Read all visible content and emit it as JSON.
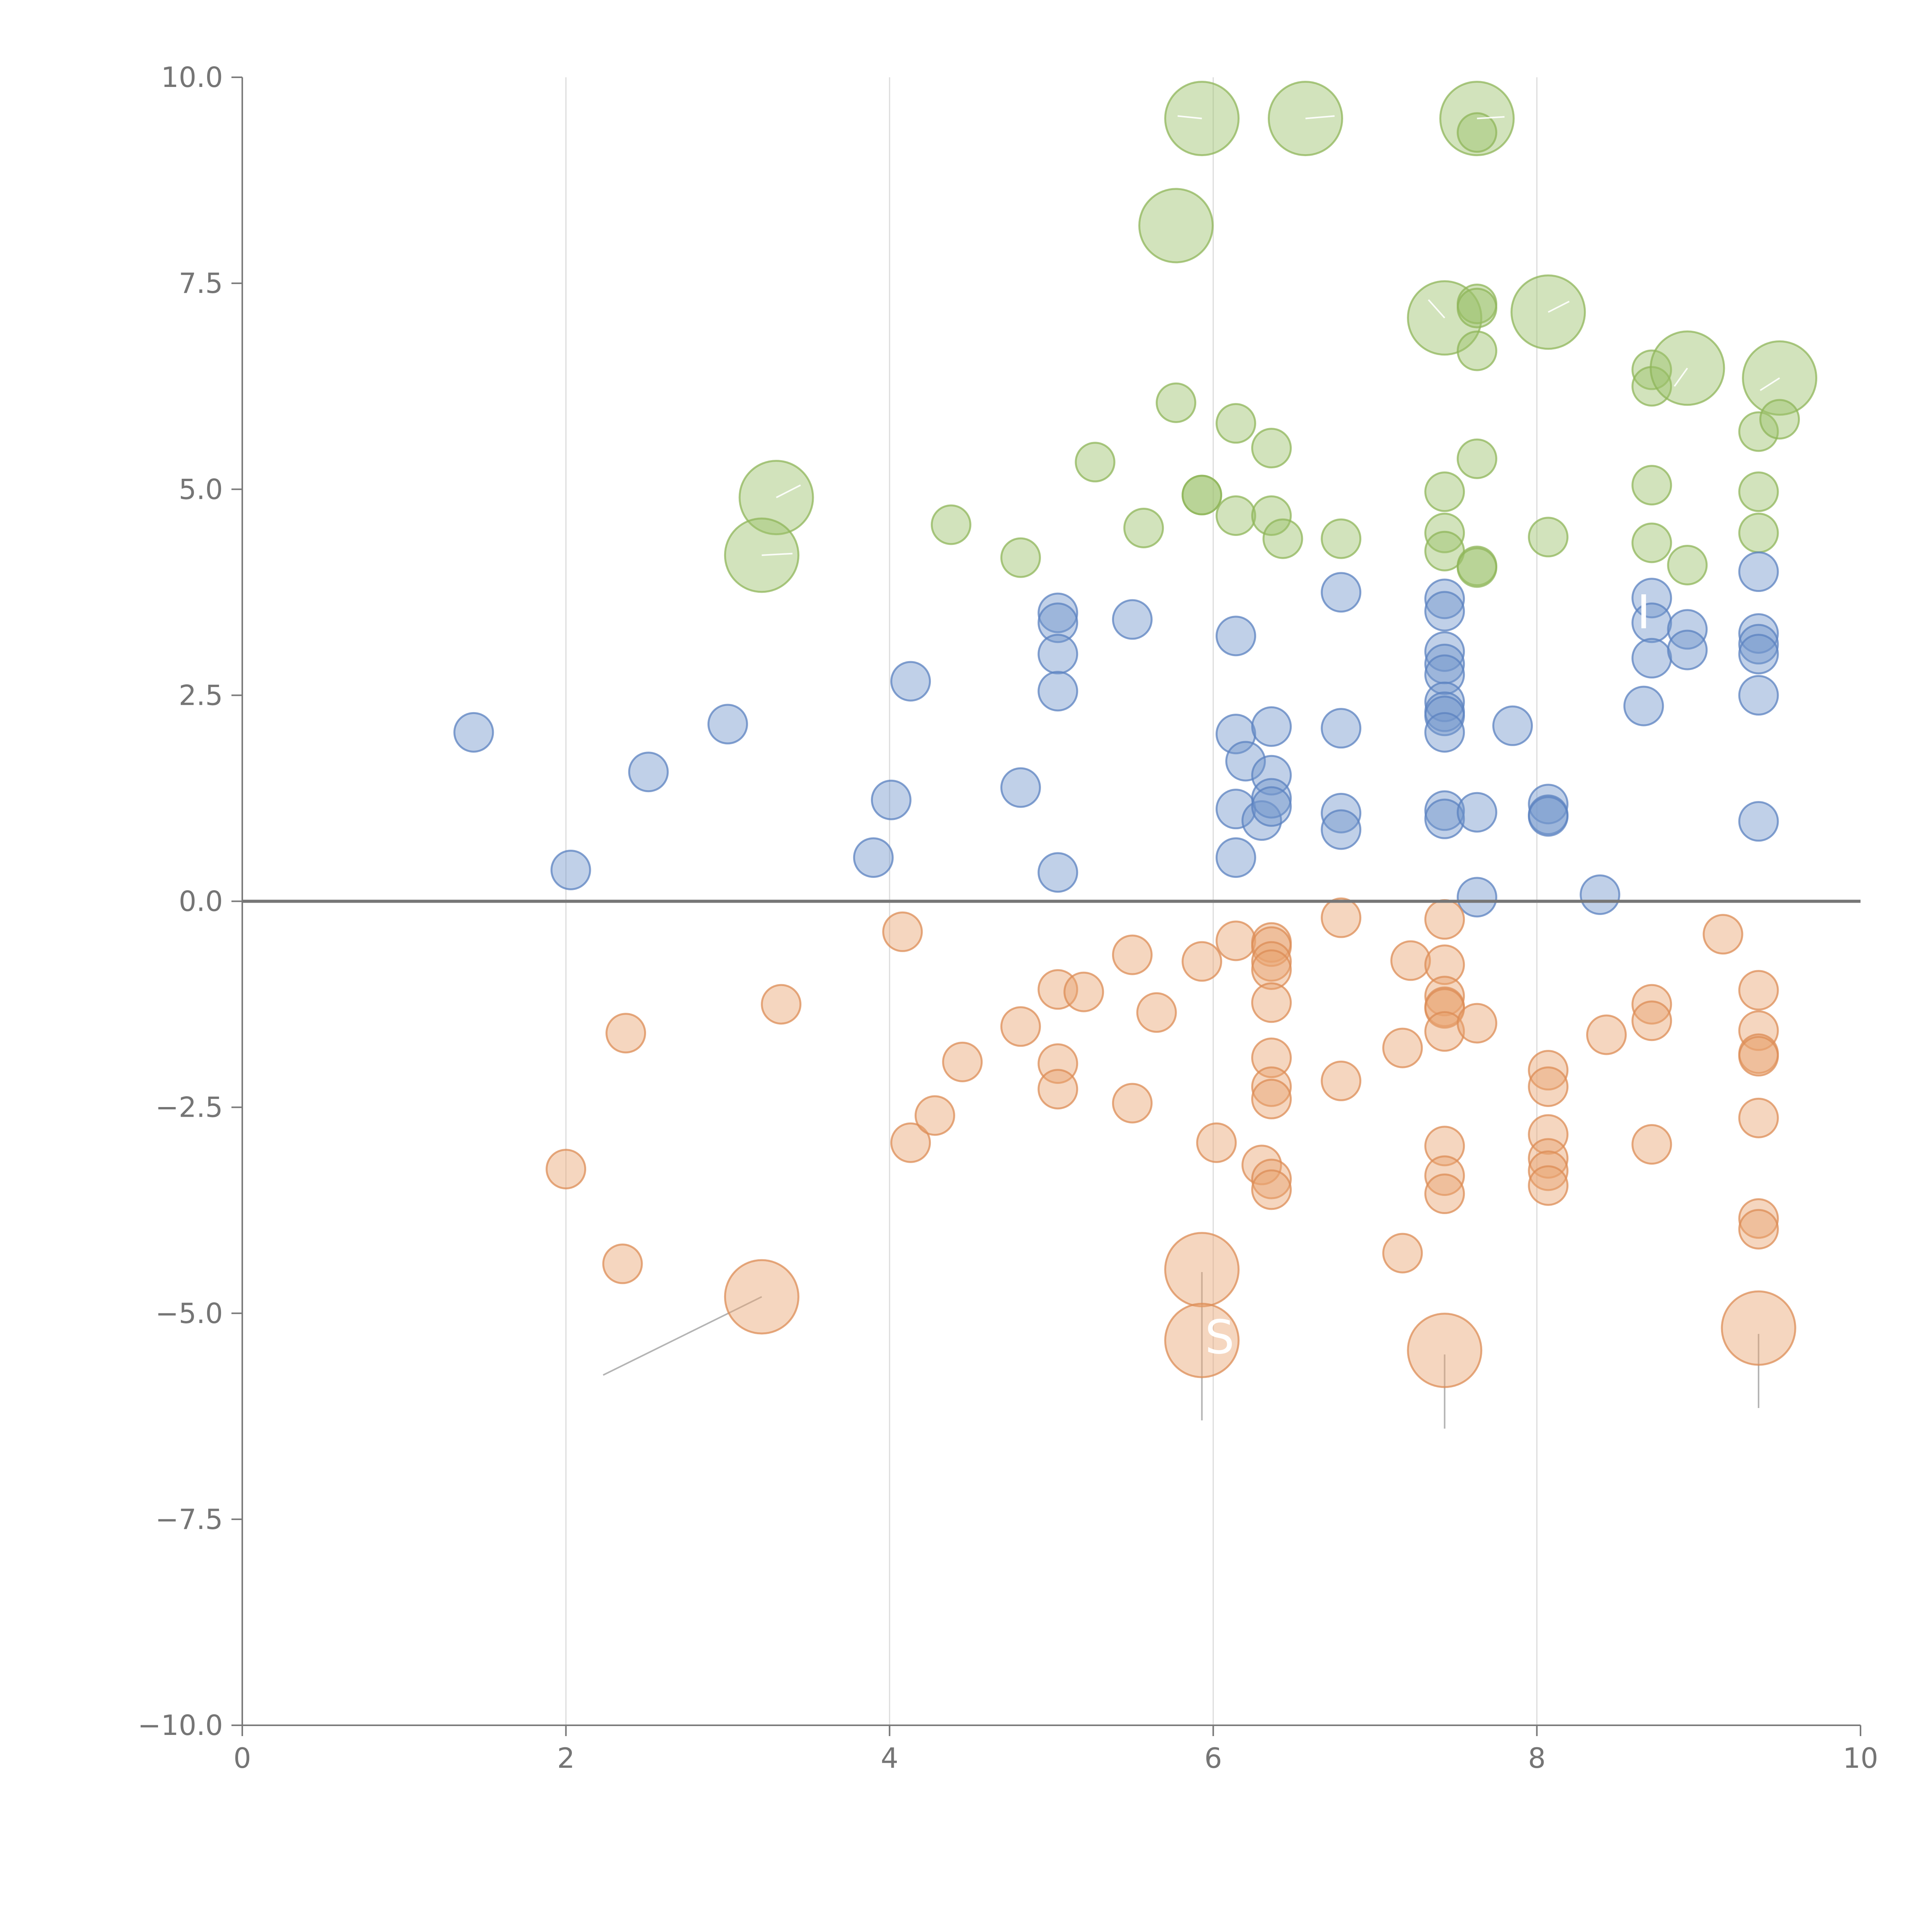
{
  "chart_data": {
    "type": "scatter",
    "title": "",
    "xlabel": "",
    "ylabel": "",
    "xlim": [
      0,
      10
    ],
    "ylim": [
      -10,
      10
    ],
    "x_ticks": [
      0,
      2,
      4,
      6,
      8,
      10
    ],
    "y_ticks": [
      -10,
      -7.5,
      -5,
      -2.5,
      0,
      2.5,
      5,
      7.5,
      10
    ],
    "x_tick_labels": [
      "0",
      "2",
      "4",
      "6",
      "8",
      "10"
    ],
    "y_tick_labels": [
      "−10.0",
      "−7.5",
      "−5.0",
      "−2.5",
      "0.0",
      "2.5",
      "5.0",
      "7.5",
      "10.0"
    ],
    "x_grid": true,
    "y_grid": false,
    "zero_line": true,
    "overlay_labels": [
      {
        "text": "S",
        "x": 6.04,
        "y": -5.3
      },
      {
        "text": "I",
        "x": 8.66,
        "y": 3.5
      }
    ],
    "series": [
      {
        "name": "green",
        "color": "#9cc06a",
        "stroke": "#8fb55a",
        "points": [
          {
            "x": 5.93,
            "y": 9.5,
            "s": 3
          },
          {
            "x": 6.57,
            "y": 9.5,
            "s": 3
          },
          {
            "x": 7.63,
            "y": 9.5,
            "s": 3
          },
          {
            "x": 7.63,
            "y": 9.33,
            "s": 1
          },
          {
            "x": 5.77,
            "y": 8.2,
            "s": 3
          },
          {
            "x": 7.43,
            "y": 7.08,
            "s": 3
          },
          {
            "x": 8.07,
            "y": 7.15,
            "s": 3
          },
          {
            "x": 7.63,
            "y": 7.25,
            "s": 1
          },
          {
            "x": 7.63,
            "y": 7.2,
            "s": 1
          },
          {
            "x": 7.63,
            "y": 6.68,
            "s": 1
          },
          {
            "x": 8.71,
            "y": 6.45,
            "s": 1
          },
          {
            "x": 8.71,
            "y": 6.25,
            "s": 1
          },
          {
            "x": 8.93,
            "y": 6.47,
            "s": 3
          },
          {
            "x": 9.5,
            "y": 6.35,
            "s": 3
          },
          {
            "x": 9.37,
            "y": 5.7,
            "s": 1
          },
          {
            "x": 9.5,
            "y": 5.85,
            "s": 1
          },
          {
            "x": 5.77,
            "y": 6.05,
            "s": 1
          },
          {
            "x": 6.14,
            "y": 5.8,
            "s": 1
          },
          {
            "x": 6.36,
            "y": 5.5,
            "s": 1
          },
          {
            "x": 5.27,
            "y": 5.33,
            "s": 1
          },
          {
            "x": 7.63,
            "y": 5.37,
            "s": 1
          },
          {
            "x": 3.3,
            "y": 4.9,
            "s": 3
          },
          {
            "x": 3.21,
            "y": 4.2,
            "s": 3
          },
          {
            "x": 4.38,
            "y": 4.57,
            "s": 1
          },
          {
            "x": 5.57,
            "y": 4.53,
            "s": 1
          },
          {
            "x": 5.93,
            "y": 4.93,
            "s": 1
          },
          {
            "x": 5.93,
            "y": 4.93,
            "s": 1
          },
          {
            "x": 6.14,
            "y": 4.68,
            "s": 1
          },
          {
            "x": 6.36,
            "y": 4.68,
            "s": 1
          },
          {
            "x": 6.43,
            "y": 4.4,
            "s": 1
          },
          {
            "x": 4.81,
            "y": 4.17,
            "s": 1
          },
          {
            "x": 6.79,
            "y": 4.4,
            "s": 1
          },
          {
            "x": 7.43,
            "y": 4.97,
            "s": 1
          },
          {
            "x": 7.43,
            "y": 4.47,
            "s": 1
          },
          {
            "x": 7.43,
            "y": 4.25,
            "s": 1
          },
          {
            "x": 7.63,
            "y": 4.07,
            "s": 1
          },
          {
            "x": 7.63,
            "y": 4.05,
            "s": 1
          },
          {
            "x": 8.07,
            "y": 4.42,
            "s": 1
          },
          {
            "x": 8.71,
            "y": 5.05,
            "s": 1
          },
          {
            "x": 8.71,
            "y": 4.35,
            "s": 1
          },
          {
            "x": 8.93,
            "y": 4.08,
            "s": 1
          },
          {
            "x": 9.37,
            "y": 4.97,
            "s": 1
          },
          {
            "x": 9.37,
            "y": 4.47,
            "s": 1
          }
        ]
      },
      {
        "name": "blue",
        "color": "#7396cb",
        "stroke": "#5b82c0",
        "points": [
          {
            "x": 1.43,
            "y": 2.05,
            "s": 1
          },
          {
            "x": 2.03,
            "y": 0.38,
            "s": 1
          },
          {
            "x": 2.51,
            "y": 1.57,
            "s": 1
          },
          {
            "x": 3.0,
            "y": 2.15,
            "s": 1
          },
          {
            "x": 3.9,
            "y": 0.53,
            "s": 1
          },
          {
            "x": 4.01,
            "y": 1.23,
            "s": 1
          },
          {
            "x": 4.13,
            "y": 2.67,
            "s": 1
          },
          {
            "x": 4.81,
            "y": 1.38,
            "s": 1
          },
          {
            "x": 5.04,
            "y": 3.5,
            "s": 1
          },
          {
            "x": 5.04,
            "y": 3.38,
            "s": 1
          },
          {
            "x": 5.04,
            "y": 3.0,
            "s": 1
          },
          {
            "x": 5.04,
            "y": 2.55,
            "s": 1
          },
          {
            "x": 5.04,
            "y": 0.35,
            "s": 1
          },
          {
            "x": 5.5,
            "y": 3.42,
            "s": 1
          },
          {
            "x": 6.14,
            "y": 3.22,
            "s": 1
          },
          {
            "x": 6.14,
            "y": 2.03,
            "s": 1
          },
          {
            "x": 6.2,
            "y": 1.7,
            "s": 1
          },
          {
            "x": 6.14,
            "y": 1.12,
            "s": 1
          },
          {
            "x": 6.14,
            "y": 0.53,
            "s": 1
          },
          {
            "x": 6.3,
            "y": 0.98,
            "s": 1
          },
          {
            "x": 6.36,
            "y": 2.12,
            "s": 1
          },
          {
            "x": 6.36,
            "y": 1.53,
            "s": 1
          },
          {
            "x": 6.36,
            "y": 1.25,
            "s": 1
          },
          {
            "x": 6.36,
            "y": 1.15,
            "s": 1
          },
          {
            "x": 6.79,
            "y": 3.75,
            "s": 1
          },
          {
            "x": 6.79,
            "y": 2.1,
            "s": 1
          },
          {
            "x": 6.79,
            "y": 1.07,
            "s": 1
          },
          {
            "x": 6.79,
            "y": 0.87,
            "s": 1
          },
          {
            "x": 7.43,
            "y": 3.67,
            "s": 1
          },
          {
            "x": 7.43,
            "y": 3.52,
            "s": 1
          },
          {
            "x": 7.43,
            "y": 3.03,
            "s": 1
          },
          {
            "x": 7.43,
            "y": 2.88,
            "s": 1
          },
          {
            "x": 7.43,
            "y": 2.75,
            "s": 1
          },
          {
            "x": 7.43,
            "y": 2.42,
            "s": 1
          },
          {
            "x": 7.43,
            "y": 2.3,
            "s": 1
          },
          {
            "x": 7.43,
            "y": 2.25,
            "s": 1
          },
          {
            "x": 7.43,
            "y": 2.05,
            "s": 1
          },
          {
            "x": 7.43,
            "y": 1.1,
            "s": 1
          },
          {
            "x": 7.43,
            "y": 1.0,
            "s": 1
          },
          {
            "x": 7.63,
            "y": 1.08,
            "s": 1
          },
          {
            "x": 7.63,
            "y": 0.05,
            "s": 1
          },
          {
            "x": 7.85,
            "y": 2.13,
            "s": 1
          },
          {
            "x": 8.07,
            "y": 1.18,
            "s": 1
          },
          {
            "x": 8.07,
            "y": 1.05,
            "s": 1
          },
          {
            "x": 8.07,
            "y": 1.03,
            "s": 1
          },
          {
            "x": 8.39,
            "y": 0.08,
            "s": 1
          },
          {
            "x": 8.66,
            "y": 2.37,
            "s": 1
          },
          {
            "x": 8.71,
            "y": 3.68,
            "s": 1
          },
          {
            "x": 8.71,
            "y": 3.38,
            "s": 1
          },
          {
            "x": 8.71,
            "y": 2.95,
            "s": 1
          },
          {
            "x": 8.93,
            "y": 3.3,
            "s": 1
          },
          {
            "x": 8.93,
            "y": 3.05,
            "s": 1
          },
          {
            "x": 9.37,
            "y": 4.0,
            "s": 1
          },
          {
            "x": 9.37,
            "y": 3.25,
            "s": 1
          },
          {
            "x": 9.37,
            "y": 3.12,
            "s": 1
          },
          {
            "x": 9.37,
            "y": 3.0,
            "s": 1
          },
          {
            "x": 9.37,
            "y": 2.5,
            "s": 1
          },
          {
            "x": 9.37,
            "y": 0.97,
            "s": 1
          }
        ]
      },
      {
        "name": "orange",
        "color": "#e8a372",
        "stroke": "#dc8c55",
        "points": [
          {
            "x": 4.08,
            "y": -0.37,
            "s": 1
          },
          {
            "x": 3.33,
            "y": -1.25,
            "s": 1
          },
          {
            "x": 2.37,
            "y": -1.6,
            "s": 1
          },
          {
            "x": 2.0,
            "y": -3.25,
            "s": 1
          },
          {
            "x": 2.35,
            "y": -4.4,
            "s": 1
          },
          {
            "x": 3.21,
            "y": -4.8,
            "s": 3
          },
          {
            "x": 4.13,
            "y": -2.93,
            "s": 1
          },
          {
            "x": 4.28,
            "y": -2.6,
            "s": 1
          },
          {
            "x": 4.45,
            "y": -1.95,
            "s": 1
          },
          {
            "x": 4.81,
            "y": -1.52,
            "s": 1
          },
          {
            "x": 5.04,
            "y": -1.07,
            "s": 1
          },
          {
            "x": 5.04,
            "y": -1.97,
            "s": 1
          },
          {
            "x": 5.04,
            "y": -2.28,
            "s": 1
          },
          {
            "x": 5.2,
            "y": -1.1,
            "s": 1
          },
          {
            "x": 5.5,
            "y": -0.65,
            "s": 1
          },
          {
            "x": 5.5,
            "y": -2.45,
            "s": 1
          },
          {
            "x": 5.65,
            "y": -1.35,
            "s": 1
          },
          {
            "x": 5.93,
            "y": -0.73,
            "s": 1
          },
          {
            "x": 5.93,
            "y": -4.47,
            "s": 3
          },
          {
            "x": 5.93,
            "y": -5.33,
            "s": 3
          },
          {
            "x": 6.02,
            "y": -2.93,
            "s": 1
          },
          {
            "x": 6.14,
            "y": -0.48,
            "s": 1
          },
          {
            "x": 6.3,
            "y": -3.2,
            "s": 1
          },
          {
            "x": 6.36,
            "y": -0.5,
            "s": 1
          },
          {
            "x": 6.36,
            "y": -0.55,
            "s": 1
          },
          {
            "x": 6.36,
            "y": -0.73,
            "s": 1
          },
          {
            "x": 6.36,
            "y": -0.83,
            "s": 1
          },
          {
            "x": 6.36,
            "y": -1.23,
            "s": 1
          },
          {
            "x": 6.36,
            "y": -1.9,
            "s": 1
          },
          {
            "x": 6.36,
            "y": -2.25,
            "s": 1
          },
          {
            "x": 6.36,
            "y": -2.4,
            "s": 1
          },
          {
            "x": 6.36,
            "y": -3.37,
            "s": 1
          },
          {
            "x": 6.36,
            "y": -3.5,
            "s": 1
          },
          {
            "x": 6.79,
            "y": -0.2,
            "s": 1
          },
          {
            "x": 6.79,
            "y": -2.18,
            "s": 1
          },
          {
            "x": 7.17,
            "y": -1.78,
            "s": 1
          },
          {
            "x": 7.17,
            "y": -4.27,
            "s": 1
          },
          {
            "x": 7.22,
            "y": -0.72,
            "s": 1
          },
          {
            "x": 7.43,
            "y": -0.22,
            "s": 1
          },
          {
            "x": 7.43,
            "y": -0.77,
            "s": 1
          },
          {
            "x": 7.43,
            "y": -1.15,
            "s": 1
          },
          {
            "x": 7.43,
            "y": -1.28,
            "s": 1
          },
          {
            "x": 7.43,
            "y": -1.3,
            "s": 1
          },
          {
            "x": 7.43,
            "y": -1.58,
            "s": 1
          },
          {
            "x": 7.43,
            "y": -2.97,
            "s": 1
          },
          {
            "x": 7.43,
            "y": -3.33,
            "s": 1
          },
          {
            "x": 7.43,
            "y": -3.55,
            "s": 1
          },
          {
            "x": 7.43,
            "y": -5.45,
            "s": 3
          },
          {
            "x": 7.63,
            "y": -1.48,
            "s": 1
          },
          {
            "x": 8.07,
            "y": -2.05,
            "s": 1
          },
          {
            "x": 8.07,
            "y": -2.25,
            "s": 1
          },
          {
            "x": 8.07,
            "y": -2.83,
            "s": 1
          },
          {
            "x": 8.07,
            "y": -3.12,
            "s": 1
          },
          {
            "x": 8.07,
            "y": -3.27,
            "s": 1
          },
          {
            "x": 8.07,
            "y": -3.45,
            "s": 1
          },
          {
            "x": 8.43,
            "y": -1.62,
            "s": 1
          },
          {
            "x": 8.71,
            "y": -1.25,
            "s": 1
          },
          {
            "x": 8.71,
            "y": -1.45,
            "s": 1
          },
          {
            "x": 8.71,
            "y": -2.95,
            "s": 1
          },
          {
            "x": 9.15,
            "y": -0.4,
            "s": 1
          },
          {
            "x": 9.37,
            "y": -1.08,
            "s": 1
          },
          {
            "x": 9.37,
            "y": -1.57,
            "s": 1
          },
          {
            "x": 9.37,
            "y": -1.85,
            "s": 1
          },
          {
            "x": 9.37,
            "y": -1.88,
            "s": 1
          },
          {
            "x": 9.37,
            "y": -2.63,
            "s": 1
          },
          {
            "x": 9.37,
            "y": -3.85,
            "s": 1
          },
          {
            "x": 9.37,
            "y": -3.98,
            "s": 1
          },
          {
            "x": 9.37,
            "y": -5.18,
            "s": 3
          }
        ]
      }
    ],
    "leader_lines": [
      {
        "tone": "grey",
        "x1": 3.21,
        "y1": -4.8,
        "x2": 2.23,
        "y2": -5.75
      },
      {
        "tone": "grey",
        "x1": 5.93,
        "y1": -4.5,
        "x2": 5.93,
        "y2": -6.3
      },
      {
        "tone": "grey",
        "x1": 7.43,
        "y1": -5.5,
        "x2": 7.43,
        "y2": -6.4
      },
      {
        "tone": "grey",
        "x1": 9.37,
        "y1": -5.25,
        "x2": 9.37,
        "y2": -6.15
      },
      {
        "tone": "white",
        "x1": 3.3,
        "y1": 4.9,
        "x2": 3.45,
        "y2": 5.05
      },
      {
        "tone": "white",
        "x1": 3.21,
        "y1": 4.2,
        "x2": 3.4,
        "y2": 4.22
      },
      {
        "tone": "white",
        "x1": 5.93,
        "y1": 9.5,
        "x2": 5.78,
        "y2": 9.53
      },
      {
        "tone": "white",
        "x1": 6.57,
        "y1": 9.5,
        "x2": 6.75,
        "y2": 9.53
      },
      {
        "tone": "white",
        "x1": 7.63,
        "y1": 9.5,
        "x2": 7.8,
        "y2": 9.52
      },
      {
        "tone": "white",
        "x1": 7.43,
        "y1": 7.08,
        "x2": 7.33,
        "y2": 7.3
      },
      {
        "tone": "white",
        "x1": 8.07,
        "y1": 7.15,
        "x2": 8.2,
        "y2": 7.28
      },
      {
        "tone": "white",
        "x1": 8.93,
        "y1": 6.47,
        "x2": 8.85,
        "y2": 6.25
      },
      {
        "tone": "white",
        "x1": 9.5,
        "y1": 6.35,
        "x2": 9.38,
        "y2": 6.2
      }
    ]
  }
}
